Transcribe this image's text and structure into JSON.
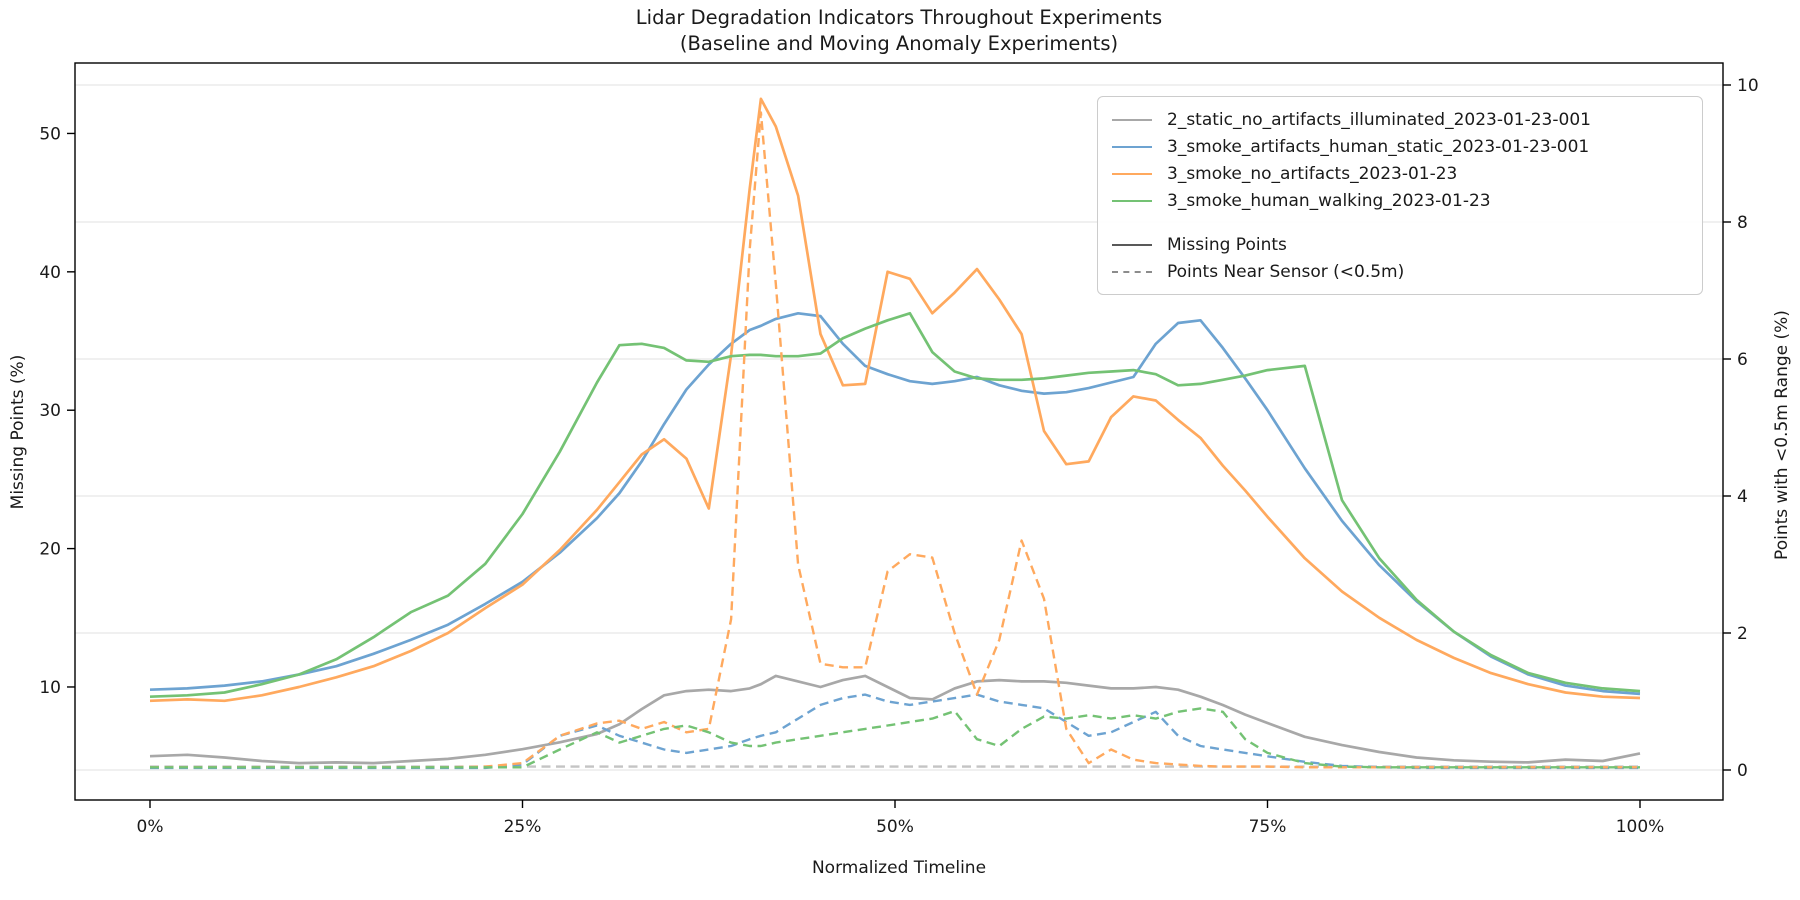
{
  "title": {
    "line1": "Lidar Degradation Indicators Throughout Experiments",
    "line2": "(Baseline and Moving Anomaly Experiments)"
  },
  "axes": {
    "x": {
      "label": "Normalized Timeline",
      "tick_labels": [
        "0%",
        "25%",
        "50%",
        "75%",
        "100%"
      ],
      "tick_values": [
        0,
        25,
        50,
        75,
        100
      ]
    },
    "y_left": {
      "label": "Missing Points (%)",
      "tick_values": [
        10,
        20,
        30,
        40,
        50
      ]
    },
    "y_right": {
      "label": "Points with <0.5m Range (%)",
      "tick_values": [
        0,
        2,
        4,
        6,
        8,
        10
      ]
    }
  },
  "legend": {
    "experiments": [
      {
        "label": "2_static_no_artifacts_illuminated_2023-01-23-001",
        "color": "#a8a8a8"
      },
      {
        "label": "3_smoke_artifacts_human_static_2023-01-23-001",
        "color": "#6da3d1"
      },
      {
        "label": "3_smoke_no_artifacts_2023-01-23",
        "color": "#ffa95e"
      },
      {
        "label": "3_smoke_human_walking_2023-01-23",
        "color": "#74c274"
      }
    ],
    "styles": [
      {
        "label": "Missing Points",
        "dashed": false,
        "color": "#595959"
      },
      {
        "label": "Points Near Sensor (<0.5m)",
        "dashed": true,
        "color": "#8c8c8c"
      }
    ]
  },
  "chart_data": {
    "type": "line",
    "title": "Lidar Degradation Indicators Throughout Experiments (Baseline and Moving Anomaly Experiments)",
    "xlabel": "Normalized Timeline",
    "ylabel_left": "Missing Points (%)",
    "ylabel_right": "Points with <0.5m Range (%)",
    "xlim": [
      0,
      100
    ],
    "ylim_left": [
      4.0,
      55.3
    ],
    "ylim_right": [
      0,
      10.3
    ],
    "grid": "horizontal gridlines aligned to right-axis ticks 0,2,4,6,8,10",
    "legend_position": "upper right",
    "x": [
      0,
      2.5,
      5,
      7.5,
      10,
      12.5,
      15,
      17.5,
      20,
      22.5,
      25,
      27.5,
      30,
      31.5,
      33,
      34.5,
      36,
      37.5,
      39,
      40.25,
      41,
      42,
      43.5,
      45,
      46.5,
      48,
      49.5,
      51,
      52.5,
      54,
      55.5,
      57,
      58.5,
      60,
      61.5,
      63,
      64.5,
      66,
      67.5,
      69,
      70.5,
      72,
      73.5,
      75,
      77.5,
      80,
      82.5,
      85,
      87.5,
      90,
      92.5,
      95,
      97.5,
      100
    ],
    "series": [
      {
        "name": "2_static_no_artifacts_illuminated_2023-01-23-001",
        "metric": "Missing Points",
        "axis": "left",
        "style": "solid",
        "color": "#a8a8a8",
        "values": [
          5.0,
          5.1,
          4.9,
          4.65,
          4.5,
          4.55,
          4.5,
          4.65,
          4.8,
          5.1,
          5.5,
          6.0,
          6.6,
          7.3,
          8.4,
          9.4,
          9.7,
          9.8,
          9.7,
          9.9,
          10.2,
          10.8,
          10.4,
          10.0,
          10.5,
          10.8,
          10.0,
          9.2,
          9.1,
          9.9,
          10.4,
          10.5,
          10.4,
          10.4,
          10.3,
          10.1,
          9.9,
          9.9,
          10.0,
          9.8,
          9.3,
          8.7,
          8.0,
          7.4,
          6.4,
          5.8,
          5.3,
          4.9,
          4.7,
          4.6,
          4.55,
          4.75,
          4.65,
          5.2
        ]
      },
      {
        "name": "3_smoke_artifacts_human_static_2023-01-23-001",
        "metric": "Missing Points",
        "axis": "left",
        "style": "solid",
        "color": "#6da3d1",
        "values": [
          9.8,
          9.9,
          10.1,
          10.4,
          10.9,
          11.5,
          12.4,
          13.4,
          14.5,
          16.0,
          17.6,
          19.7,
          22.2,
          24.0,
          26.3,
          29.0,
          31.5,
          33.3,
          34.8,
          35.8,
          36.1,
          36.6,
          37.0,
          36.8,
          34.8,
          33.2,
          32.6,
          32.1,
          31.9,
          32.1,
          32.4,
          31.8,
          31.4,
          31.2,
          31.3,
          31.6,
          32.0,
          32.4,
          34.8,
          36.3,
          36.5,
          34.5,
          32.3,
          30.0,
          25.8,
          22.0,
          18.8,
          16.2,
          14.0,
          12.2,
          10.9,
          10.1,
          9.7,
          9.5
        ]
      },
      {
        "name": "3_smoke_no_artifacts_2023-01-23",
        "metric": "Missing Points",
        "axis": "left",
        "style": "solid",
        "color": "#ffa95e",
        "values": [
          9.0,
          9.1,
          9.0,
          9.4,
          10.0,
          10.7,
          11.5,
          12.6,
          13.9,
          15.7,
          17.4,
          19.9,
          22.8,
          24.8,
          26.8,
          27.9,
          26.5,
          22.9,
          34.0,
          46.0,
          52.5,
          50.5,
          45.5,
          35.5,
          31.8,
          31.9,
          40.0,
          39.5,
          37.0,
          38.5,
          40.2,
          38.0,
          35.5,
          28.5,
          26.1,
          26.3,
          29.5,
          31.0,
          30.7,
          29.3,
          28.0,
          26.0,
          24.2,
          22.3,
          19.3,
          16.9,
          15.0,
          13.4,
          12.1,
          11.0,
          10.2,
          9.6,
          9.3,
          9.2
        ]
      },
      {
        "name": "3_smoke_human_walking_2023-01-23",
        "metric": "Missing Points",
        "axis": "left",
        "style": "solid",
        "color": "#74c274",
        "values": [
          9.3,
          9.4,
          9.6,
          10.2,
          10.9,
          12.0,
          13.6,
          15.4,
          16.6,
          18.9,
          22.5,
          27.0,
          32.0,
          34.7,
          34.8,
          34.5,
          33.6,
          33.5,
          33.9,
          34.0,
          34.0,
          33.9,
          33.9,
          34.1,
          35.2,
          35.9,
          36.5,
          37.0,
          34.2,
          32.8,
          32.3,
          32.2,
          32.2,
          32.3,
          32.5,
          32.7,
          32.8,
          32.9,
          32.6,
          31.8,
          31.9,
          32.2,
          32.5,
          32.9,
          33.2,
          23.5,
          19.3,
          16.3,
          14.0,
          12.3,
          11.0,
          10.3,
          9.9,
          9.7
        ]
      },
      {
        "name": "2_static_no_artifacts_illuminated_2023-01-23-001",
        "metric": "Points Near Sensor (<0.5m)",
        "axis": "right",
        "style": "dashed",
        "color": "#c4c4c4",
        "values": [
          0.05,
          0.05,
          0.05,
          0.05,
          0.05,
          0.05,
          0.05,
          0.05,
          0.05,
          0.05,
          0.05,
          0.05,
          0.05,
          0.05,
          0.05,
          0.05,
          0.05,
          0.05,
          0.05,
          0.05,
          0.05,
          0.05,
          0.05,
          0.05,
          0.05,
          0.05,
          0.05,
          0.05,
          0.05,
          0.05,
          0.05,
          0.05,
          0.05,
          0.05,
          0.05,
          0.05,
          0.05,
          0.05,
          0.05,
          0.05,
          0.05,
          0.05,
          0.05,
          0.05,
          0.05,
          0.05,
          0.05,
          0.05,
          0.05,
          0.05,
          0.05,
          0.05,
          0.05,
          0.05
        ]
      },
      {
        "name": "3_smoke_artifacts_human_static_2023-01-23-001",
        "metric": "Points Near Sensor (<0.5m)",
        "axis": "right",
        "style": "dashed",
        "color": "#6da3d1",
        "values": [
          0.03,
          0.03,
          0.03,
          0.03,
          0.03,
          0.03,
          0.03,
          0.03,
          0.03,
          0.03,
          0.08,
          0.5,
          0.65,
          0.5,
          0.4,
          0.3,
          0.25,
          0.3,
          0.35,
          0.45,
          0.5,
          0.55,
          0.75,
          0.95,
          1.05,
          1.1,
          1.0,
          0.95,
          1.0,
          1.05,
          1.1,
          1.0,
          0.95,
          0.9,
          0.7,
          0.5,
          0.55,
          0.7,
          0.85,
          0.5,
          0.35,
          0.3,
          0.25,
          0.2,
          0.12,
          0.06,
          0.04,
          0.03,
          0.03,
          0.03,
          0.03,
          0.03,
          0.03,
          0.03
        ]
      },
      {
        "name": "3_smoke_no_artifacts_2023-01-23",
        "metric": "Points Near Sensor (<0.5m)",
        "axis": "right",
        "style": "dashed",
        "color": "#ffa95e",
        "values": [
          0.04,
          0.04,
          0.04,
          0.04,
          0.04,
          0.04,
          0.04,
          0.04,
          0.04,
          0.05,
          0.1,
          0.5,
          0.68,
          0.72,
          0.6,
          0.7,
          0.55,
          0.6,
          2.2,
          7.6,
          9.6,
          7.1,
          3.0,
          1.55,
          1.5,
          1.5,
          2.9,
          3.15,
          3.1,
          2.0,
          1.1,
          1.9,
          3.35,
          2.5,
          0.6,
          0.1,
          0.3,
          0.15,
          0.1,
          0.08,
          0.06,
          0.05,
          0.05,
          0.05,
          0.04,
          0.04,
          0.04,
          0.04,
          0.04,
          0.04,
          0.04,
          0.04,
          0.04,
          0.04
        ]
      },
      {
        "name": "3_smoke_human_walking_2023-01-23",
        "metric": "Points Near Sensor (<0.5m)",
        "axis": "right",
        "style": "dashed",
        "color": "#74c274",
        "values": [
          0.04,
          0.04,
          0.04,
          0.04,
          0.04,
          0.04,
          0.04,
          0.04,
          0.04,
          0.04,
          0.04,
          0.3,
          0.55,
          0.4,
          0.5,
          0.6,
          0.65,
          0.55,
          0.4,
          0.35,
          0.35,
          0.4,
          0.45,
          0.5,
          0.55,
          0.6,
          0.65,
          0.7,
          0.75,
          0.86,
          0.45,
          0.35,
          0.6,
          0.78,
          0.75,
          0.8,
          0.75,
          0.8,
          0.75,
          0.85,
          0.9,
          0.85,
          0.45,
          0.25,
          0.1,
          0.05,
          0.04,
          0.04,
          0.04,
          0.04,
          0.04,
          0.04,
          0.04,
          0.04
        ]
      }
    ]
  }
}
